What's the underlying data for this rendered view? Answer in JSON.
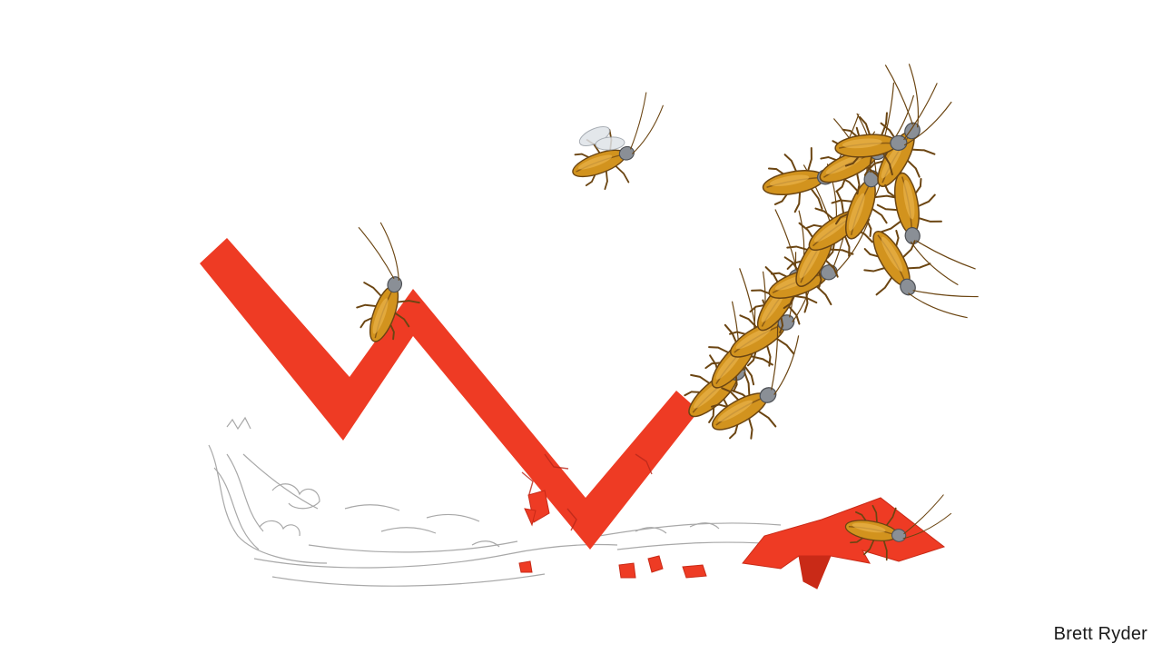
{
  "illustration": {
    "credit": "Brett Ryder",
    "colors": {
      "background": "#ffffff",
      "trend_line": "#ee3b24",
      "trend_shadow": "#c92a17",
      "cockroach_body": "#d2931e",
      "cockroach_dark": "#6b4512",
      "cockroach_head": "#8a8f96",
      "sketch": "#9a9a9a"
    }
  }
}
